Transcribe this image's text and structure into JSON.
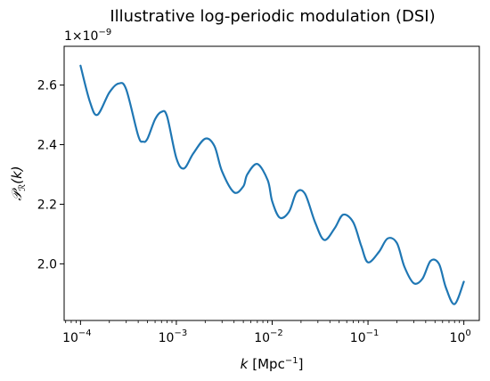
{
  "chart_data": {
    "type": "line",
    "title": "Illustrative log-periodic modulation (DSI)",
    "xlabel_math": "k",
    "xlabel_unit": "[Mpc",
    "xlabel_unit_exp": "−1",
    "xlabel_unit_close": "]",
    "ylabel_main": "𝒫",
    "ylabel_sub": "ℛ",
    "ylabel_arg": "(k)",
    "y_offset_base": "1×10",
    "y_offset_exp": "−9",
    "x_scale": "log",
    "xlim": [
      6.75e-05,
      1.45
    ],
    "ylim": [
      1.81,
      2.73
    ],
    "grid": false,
    "legend": "none",
    "x_ticks": [
      {
        "value": 0.0001,
        "base": "10",
        "exp": "−4"
      },
      {
        "value": 0.001,
        "base": "10",
        "exp": "−3"
      },
      {
        "value": 0.01,
        "base": "10",
        "exp": "−2"
      },
      {
        "value": 0.1,
        "base": "10",
        "exp": "−1"
      },
      {
        "value": 1,
        "base": "10",
        "exp": "0"
      }
    ],
    "y_ticks": [
      {
        "value": 2.0,
        "label": "2.0"
      },
      {
        "value": 2.2,
        "label": "2.2"
      },
      {
        "value": 2.4,
        "label": "2.4"
      },
      {
        "value": 2.6,
        "label": "2.6"
      }
    ],
    "series": [
      {
        "color": "#1f77b4",
        "x": [
          0.0001,
          0.000125,
          0.00015,
          0.0002,
          0.00025,
          0.0003,
          0.0004,
          0.00045,
          0.0005,
          0.0006,
          0.0007,
          0.0008,
          0.001,
          0.0012,
          0.0015,
          0.002,
          0.0025,
          0.003,
          0.004,
          0.005,
          0.0055,
          0.007,
          0.009,
          0.01,
          0.012,
          0.015,
          0.018,
          0.022,
          0.028,
          0.035,
          0.045,
          0.055,
          0.07,
          0.085,
          0.1,
          0.13,
          0.16,
          0.2,
          0.24,
          0.3,
          0.37,
          0.45,
          0.55,
          0.65,
          0.8,
          1.0
        ],
        "y": [
          2.665,
          2.545,
          2.5,
          2.575,
          2.605,
          2.585,
          2.43,
          2.41,
          2.42,
          2.485,
          2.51,
          2.495,
          2.355,
          2.32,
          2.37,
          2.42,
          2.395,
          2.31,
          2.24,
          2.26,
          2.3,
          2.335,
          2.28,
          2.21,
          2.155,
          2.175,
          2.24,
          2.235,
          2.14,
          2.08,
          2.12,
          2.165,
          2.14,
          2.06,
          2.005,
          2.04,
          2.085,
          2.07,
          1.99,
          1.935,
          1.95,
          2.01,
          2.0,
          1.92,
          1.865,
          1.94
        ]
      }
    ]
  }
}
